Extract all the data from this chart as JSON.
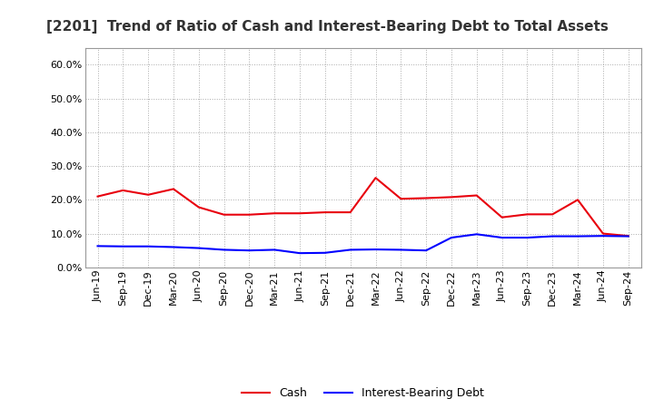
{
  "title": "[2201]  Trend of Ratio of Cash and Interest-Bearing Debt to Total Assets",
  "x_labels": [
    "Jun-19",
    "Sep-19",
    "Dec-19",
    "Mar-20",
    "Jun-20",
    "Sep-20",
    "Dec-20",
    "Mar-21",
    "Jun-21",
    "Sep-21",
    "Dec-21",
    "Mar-22",
    "Jun-22",
    "Sep-22",
    "Dec-22",
    "Mar-23",
    "Jun-23",
    "Sep-23",
    "Dec-23",
    "Mar-24",
    "Jun-24",
    "Sep-24"
  ],
  "cash": [
    0.21,
    0.228,
    0.215,
    0.232,
    0.178,
    0.156,
    0.156,
    0.16,
    0.16,
    0.163,
    0.163,
    0.265,
    0.203,
    0.205,
    0.208,
    0.213,
    0.148,
    0.157,
    0.157,
    0.2,
    0.1,
    0.093
  ],
  "debt": [
    0.063,
    0.062,
    0.062,
    0.06,
    0.057,
    0.052,
    0.05,
    0.052,
    0.042,
    0.043,
    0.052,
    0.053,
    0.052,
    0.05,
    0.088,
    0.098,
    0.088,
    0.088,
    0.092,
    0.092,
    0.093,
    0.092
  ],
  "cash_color": "#e8000d",
  "debt_color": "#0000ff",
  "ylim": [
    0.0,
    0.65
  ],
  "yticks": [
    0.0,
    0.1,
    0.2,
    0.3,
    0.4,
    0.5,
    0.6
  ],
  "background_color": "#ffffff",
  "plot_bg_color": "#ffffff",
  "grid_color": "#aaaaaa",
  "legend_labels": [
    "Cash",
    "Interest-Bearing Debt"
  ],
  "title_fontsize": 11,
  "tick_fontsize": 8
}
